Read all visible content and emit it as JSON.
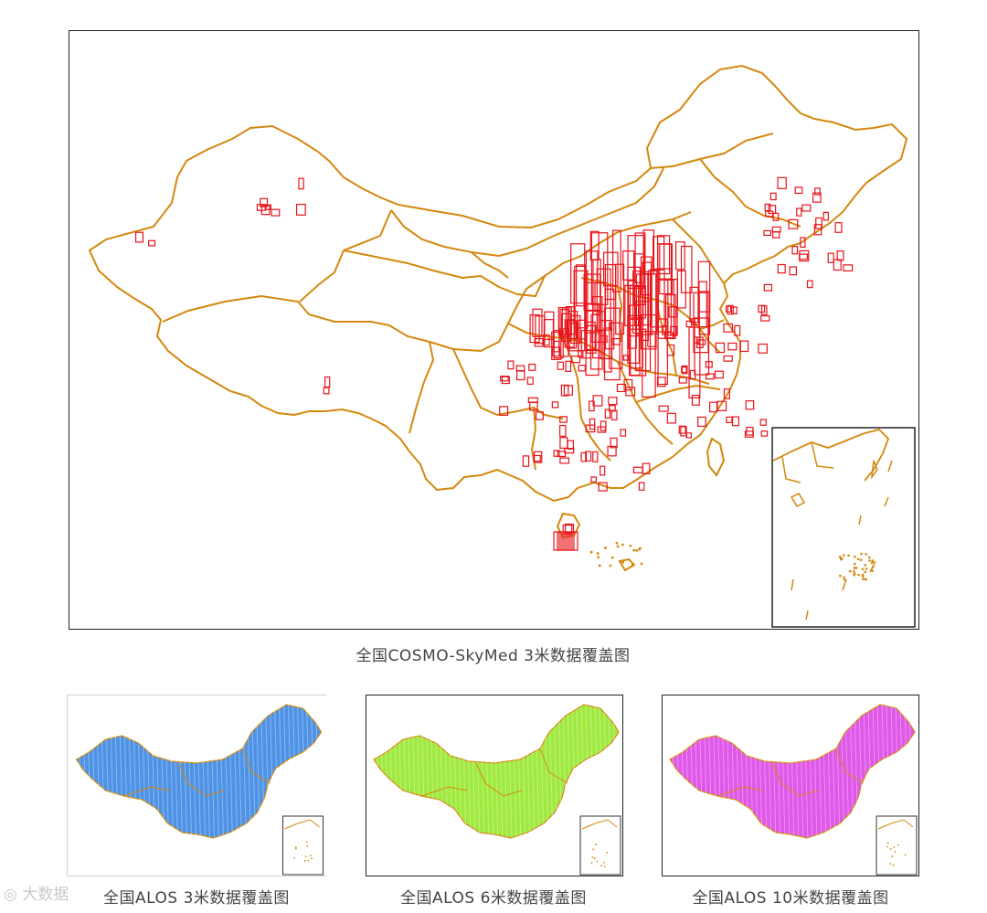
{
  "main_map": {
    "caption": "全国COSMO-SkyMed 3米数据覆盖图",
    "outline_color": "#d4880f",
    "footprint_color": "#e8141b",
    "inset_border_color": "#222222"
  },
  "small_maps": [
    {
      "caption": "全国ALOS 3米数据覆盖图",
      "fill_color": "#2e7fe0",
      "outline_color": "#d4880f"
    },
    {
      "caption": "全国ALOS 6米数据覆盖图",
      "fill_color": "#8fe61e",
      "outline_color": "#d4880f"
    },
    {
      "caption": "全国ALOS 10米数据覆盖图",
      "fill_color": "#d93be6",
      "outline_color": "#d4880f"
    }
  ],
  "watermark": {
    "text": "大数据"
  }
}
